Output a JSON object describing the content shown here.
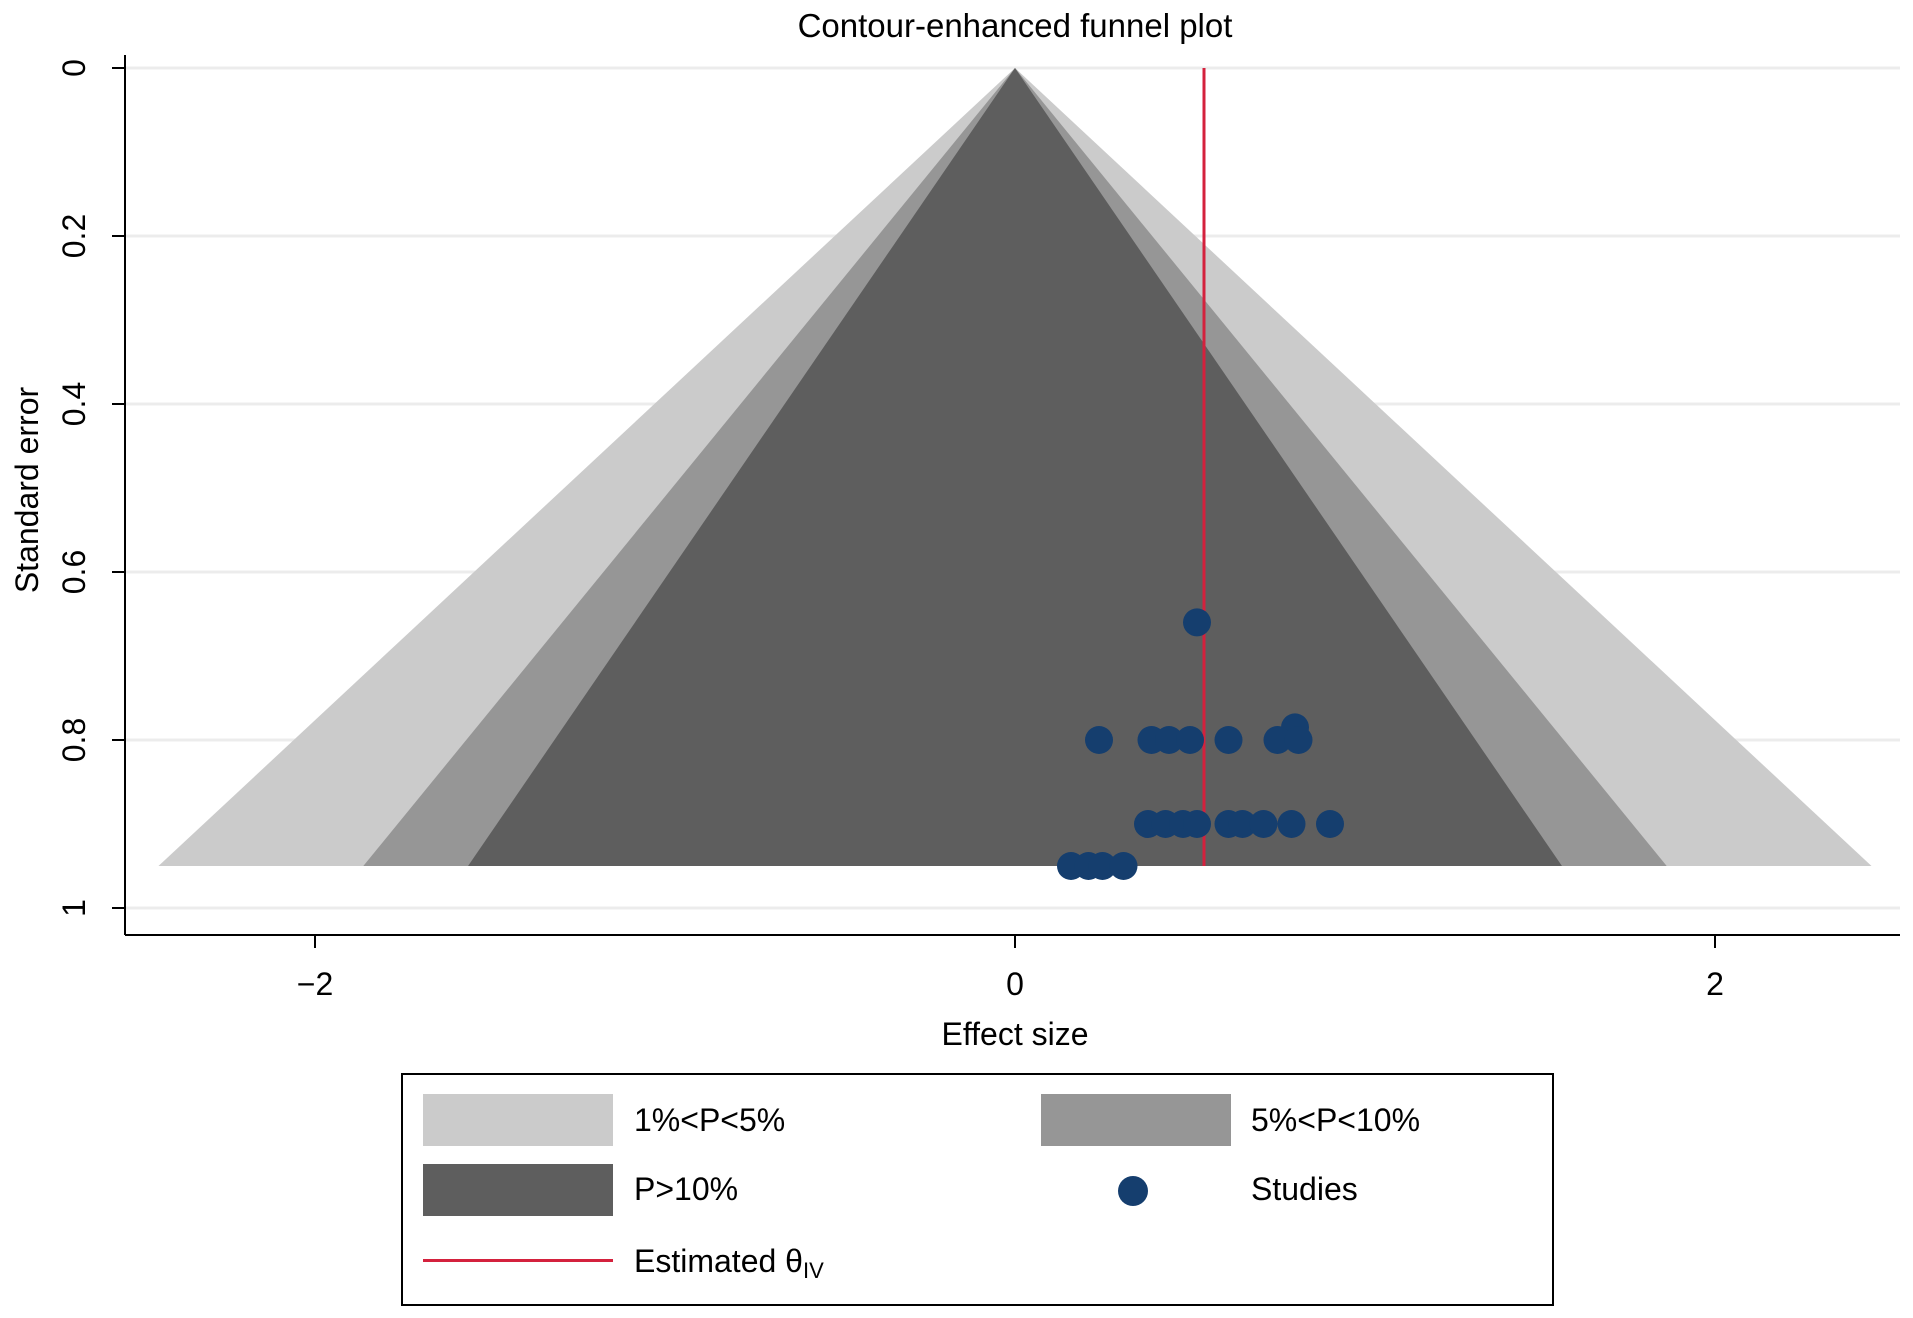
{
  "chart_data": {
    "type": "scatter",
    "title": "Contour-enhanced funnel plot",
    "xlabel": "Effect size",
    "ylabel": "Standard error",
    "xlim": [
      -2.5,
      2.5
    ],
    "ylim": [
      1.03,
      0
    ],
    "y_reversed": true,
    "x_ticks": [
      {
        "value": -2,
        "label": "−2"
      },
      {
        "value": 0,
        "label": "0"
      },
      {
        "value": 2,
        "label": "2"
      }
    ],
    "y_ticks": [
      {
        "value": 0,
        "label": "0"
      },
      {
        "value": 0.2,
        "label": "0.2"
      },
      {
        "value": 0.4,
        "label": "0.4"
      },
      {
        "value": 0.6,
        "label": "0.6"
      },
      {
        "value": 0.8,
        "label": "0.8"
      },
      {
        "value": 1,
        "label": "1"
      }
    ],
    "grid": "horizontal",
    "funnel_max_se": 0.95,
    "contours": [
      {
        "name": "1%<P<5%",
        "z": 2.576,
        "color": "#cbcbcb"
      },
      {
        "name": "5%<P<10%",
        "z": 1.96,
        "color": "#969696"
      },
      {
        "name": "P>10%",
        "z": 1.645,
        "color": "#5e5e5e"
      }
    ],
    "estimate": {
      "name": "Estimated θIV",
      "value": 0.54,
      "color": "#d4213d"
    },
    "studies": {
      "name": "Studies",
      "color": "#153e6e",
      "points": [
        {
          "x": 0.52,
          "y": 0.66
        },
        {
          "x": 0.8,
          "y": 0.785
        },
        {
          "x": 0.24,
          "y": 0.8
        },
        {
          "x": 0.39,
          "y": 0.8
        },
        {
          "x": 0.44,
          "y": 0.8
        },
        {
          "x": 0.5,
          "y": 0.8
        },
        {
          "x": 0.61,
          "y": 0.8
        },
        {
          "x": 0.75,
          "y": 0.8
        },
        {
          "x": 0.81,
          "y": 0.8
        },
        {
          "x": 0.38,
          "y": 0.9
        },
        {
          "x": 0.43,
          "y": 0.9
        },
        {
          "x": 0.48,
          "y": 0.9
        },
        {
          "x": 0.52,
          "y": 0.9
        },
        {
          "x": 0.61,
          "y": 0.9
        },
        {
          "x": 0.65,
          "y": 0.9
        },
        {
          "x": 0.71,
          "y": 0.9
        },
        {
          "x": 0.79,
          "y": 0.9
        },
        {
          "x": 0.9,
          "y": 0.9
        },
        {
          "x": 0.16,
          "y": 0.95
        },
        {
          "x": 0.21,
          "y": 0.95
        },
        {
          "x": 0.25,
          "y": 0.95
        },
        {
          "x": 0.31,
          "y": 0.95
        }
      ]
    },
    "legend": {
      "position": "bottom",
      "items": [
        {
          "label": "1%<P<5%",
          "kind": "area",
          "color": "#cbcbcb"
        },
        {
          "label": "5%<P<10%",
          "kind": "area",
          "color": "#969696"
        },
        {
          "label": "P>10%",
          "kind": "area",
          "color": "#5e5e5e"
        },
        {
          "label": "Studies",
          "kind": "marker",
          "color": "#153e6e"
        },
        {
          "label": "Estimated θ",
          "subscript": "IV",
          "kind": "line",
          "color": "#d4213d"
        }
      ]
    }
  }
}
